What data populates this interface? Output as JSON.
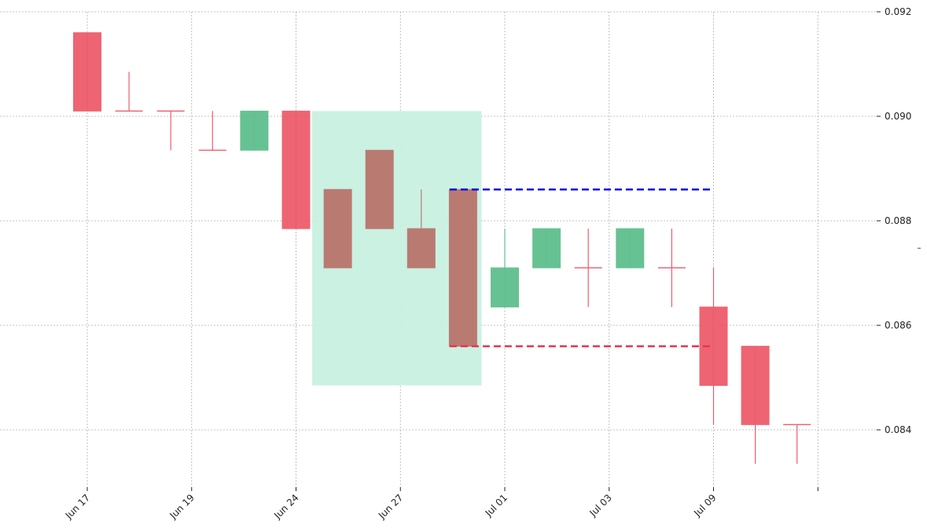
{
  "chart_data": {
    "type": "candlestick",
    "title": "",
    "xlabel": "",
    "ylabel": "",
    "grid": true,
    "ylim": [
      0.0829,
      0.092
    ],
    "y_ticks": [
      {
        "value": 0.092,
        "label": "0.092"
      },
      {
        "value": 0.09,
        "label": "0.090"
      },
      {
        "value": 0.088,
        "label": "0.088"
      },
      {
        "value": 0.086,
        "label": "0.086"
      },
      {
        "value": 0.084,
        "label": "0.084"
      }
    ],
    "x_ticks": [
      {
        "index": 0,
        "label": "Jun 17"
      },
      {
        "index": 2.5,
        "label": "Jun 19"
      },
      {
        "index": 5,
        "label": "Jun 24"
      },
      {
        "index": 7.5,
        "label": "Jun 27"
      },
      {
        "index": 10,
        "label": "Jul 01"
      },
      {
        "index": 12.5,
        "label": "Jul 03"
      },
      {
        "index": 15,
        "label": "Jul 09"
      },
      {
        "index": 17.5,
        "label": ""
      }
    ],
    "candles": [
      {
        "open": 0.0916,
        "high": 0.0916,
        "low": 0.0901,
        "close": 0.0901,
        "dir": "down"
      },
      {
        "open": 0.0901,
        "high": 0.09085,
        "low": 0.0901,
        "close": 0.0901,
        "dir": "down"
      },
      {
        "open": 0.0901,
        "high": 0.0901,
        "low": 0.08935,
        "close": 0.0901,
        "dir": "down"
      },
      {
        "open": 0.08935,
        "high": 0.0901,
        "low": 0.08935,
        "close": 0.08935,
        "dir": "down"
      },
      {
        "open": 0.08935,
        "high": 0.0901,
        "low": 0.08935,
        "close": 0.0901,
        "dir": "up"
      },
      {
        "open": 0.0901,
        "high": 0.0901,
        "low": 0.08785,
        "close": 0.08785,
        "dir": "down"
      },
      {
        "open": 0.0886,
        "high": 0.0886,
        "low": 0.0871,
        "close": 0.0871,
        "dir": "down",
        "pattern": true
      },
      {
        "open": 0.08935,
        "high": 0.08935,
        "low": 0.08785,
        "close": 0.08785,
        "dir": "down",
        "pattern": true
      },
      {
        "open": 0.08785,
        "high": 0.0886,
        "low": 0.0871,
        "close": 0.0871,
        "dir": "down",
        "pattern": true
      },
      {
        "open": 0.0886,
        "high": 0.0886,
        "low": 0.0856,
        "close": 0.0856,
        "dir": "down",
        "pattern": true
      },
      {
        "open": 0.08635,
        "high": 0.08785,
        "low": 0.08635,
        "close": 0.0871,
        "dir": "up"
      },
      {
        "open": 0.0871,
        "high": 0.08785,
        "low": 0.0871,
        "close": 0.08785,
        "dir": "up"
      },
      {
        "open": 0.0871,
        "high": 0.08785,
        "low": 0.08635,
        "close": 0.0871,
        "dir": "down"
      },
      {
        "open": 0.0871,
        "high": 0.08785,
        "low": 0.0871,
        "close": 0.08785,
        "dir": "up"
      },
      {
        "open": 0.0871,
        "high": 0.08785,
        "low": 0.08635,
        "close": 0.0871,
        "dir": "down"
      },
      {
        "open": 0.08635,
        "high": 0.0871,
        "low": 0.0841,
        "close": 0.08485,
        "dir": "down"
      },
      {
        "open": 0.0856,
        "high": 0.0856,
        "low": 0.08335,
        "close": 0.0841,
        "dir": "down"
      },
      {
        "open": 0.0841,
        "high": 0.0841,
        "low": 0.08335,
        "close": 0.0841,
        "dir": "down"
      }
    ],
    "highlight_zone": {
      "from_index": 5.5,
      "to_index": 9.5,
      "y_top": 0.0901,
      "y_bottom": 0.08485
    },
    "reference_lines": [
      {
        "value": 0.0886,
        "from_index": 9,
        "to_index": 15,
        "color": "#0000dd"
      },
      {
        "value": 0.0856,
        "from_index": 9,
        "to_index": 15,
        "color": "#e8344e"
      }
    ],
    "colors": {
      "up": "#5fbf8e",
      "down": "#ee5c6c",
      "pattern_body": "#b97a72",
      "zone": "#c8f0e0"
    }
  }
}
